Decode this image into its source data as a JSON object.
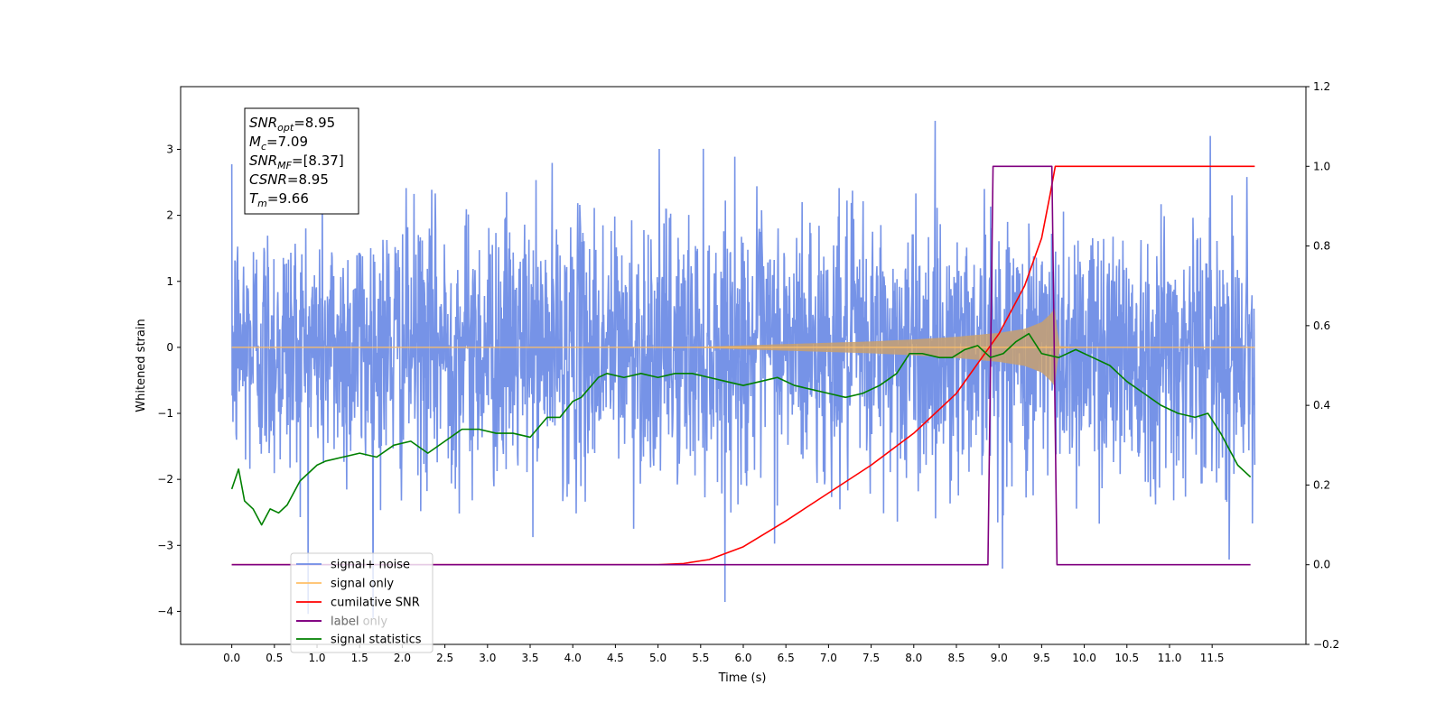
{
  "chart_data": {
    "type": "line",
    "xlabel": "Time (s)",
    "ylabel": "Whitened strain",
    "xlim": [
      -0.6,
      12.6
    ],
    "ylim_left": [
      -4.5,
      3.95
    ],
    "ylim_right": [
      -0.2,
      1.2
    ],
    "x_ticks": [
      "0.0",
      "0.5",
      "1.0",
      "1.5",
      "2.0",
      "2.5",
      "3.0",
      "3.5",
      "4.0",
      "4.5",
      "5.0",
      "5.5",
      "6.0",
      "6.5",
      "7.0",
      "7.5",
      "8.0",
      "8.5",
      "9.0",
      "9.5",
      "10.0",
      "10.5",
      "11.0",
      "11.5"
    ],
    "y_ticks_left": [
      "3",
      "2",
      "1",
      "0",
      "−1",
      "−2",
      "−3",
      "−4"
    ],
    "y_ticks_right": [
      "1.2",
      "1.0",
      "0.8",
      "0.6",
      "0.4",
      "0.2",
      "0.0",
      "−0.2"
    ],
    "annotation": {
      "lines": [
        {
          "sym": "SNR",
          "sub": "opt",
          "val": "=8.95"
        },
        {
          "sym": "M",
          "sub": "c",
          "val": "=7.09"
        },
        {
          "sym": "SNR",
          "sub": "MF",
          "val": "=[8.37]"
        },
        {
          "sym": "CSNR",
          "sub": "",
          "val": "=8.95"
        },
        {
          "sym": "T",
          "sub": "m",
          "val": "=9.66"
        }
      ]
    },
    "legend": {
      "placement": "lower-left",
      "entries": [
        {
          "label": "signal+ noise",
          "color": "#6f8de6"
        },
        {
          "label": "signal only",
          "color": "#ffbf66"
        },
        {
          "label": "cumilative SNR",
          "color": "#ff0000"
        },
        {
          "label": "label",
          "color": "#800080"
        },
        {
          "label": "label only",
          "color": "#800080"
        },
        {
          "label": "signal statistics",
          "color": "#008000"
        }
      ]
    },
    "series": [
      {
        "name": "signal+ noise",
        "axis": "left",
        "color": "#6f8de6",
        "x_range": [
          0.0,
          12.0
        ],
        "noise_sigma": 1.0,
        "min": -4.1,
        "max": 3.57
      },
      {
        "name": "signal only",
        "axis": "left",
        "color": "#ffbf66",
        "envelope_x": [
          0.0,
          5.0,
          5.5,
          6.0,
          6.5,
          7.0,
          7.5,
          8.0,
          8.5,
          9.0,
          9.3,
          9.5,
          9.6,
          9.66,
          9.7,
          10.0,
          12.0
        ],
        "envelope_y": [
          0.0,
          0.0,
          0.01,
          0.03,
          0.05,
          0.07,
          0.09,
          0.12,
          0.16,
          0.22,
          0.28,
          0.38,
          0.5,
          0.6,
          0.02,
          0.0,
          0.0
        ]
      },
      {
        "name": "cumilative SNR",
        "axis": "right",
        "color": "#ff0000",
        "x": [
          0.0,
          4.5,
          5.0,
          5.3,
          5.6,
          6.0,
          6.5,
          7.0,
          7.5,
          8.0,
          8.5,
          9.0,
          9.3,
          9.5,
          9.6,
          9.66,
          12.0
        ],
        "y": [
          0.0,
          0.0,
          0.0,
          0.003,
          0.013,
          0.045,
          0.11,
          0.18,
          0.25,
          0.33,
          0.43,
          0.58,
          0.7,
          0.82,
          0.93,
          1.0,
          1.0
        ]
      },
      {
        "name": "label",
        "axis": "right",
        "color": "#800080",
        "x": [
          0.0,
          8.87,
          8.93,
          9.62,
          9.68,
          11.95
        ],
        "y": [
          0.0,
          0.0,
          1.0,
          1.0,
          0.0,
          0.0
        ]
      },
      {
        "name": "signal statistics",
        "axis": "right",
        "color": "#008000",
        "x": [
          0.0,
          0.08,
          0.15,
          0.25,
          0.35,
          0.45,
          0.55,
          0.65,
          0.8,
          1.0,
          1.1,
          1.3,
          1.5,
          1.7,
          1.9,
          2.1,
          2.3,
          2.5,
          2.7,
          2.9,
          3.1,
          3.3,
          3.5,
          3.7,
          3.85,
          4.0,
          4.1,
          4.3,
          4.4,
          4.6,
          4.8,
          5.0,
          5.2,
          5.4,
          5.6,
          5.8,
          6.0,
          6.2,
          6.4,
          6.6,
          6.8,
          7.0,
          7.2,
          7.4,
          7.6,
          7.8,
          7.95,
          8.1,
          8.3,
          8.45,
          8.6,
          8.75,
          8.9,
          9.05,
          9.2,
          9.35,
          9.5,
          9.7,
          9.9,
          10.1,
          10.3,
          10.5,
          10.7,
          10.9,
          11.1,
          11.3,
          11.45,
          11.6,
          11.8,
          11.95
        ],
        "y": [
          0.19,
          0.24,
          0.16,
          0.14,
          0.1,
          0.14,
          0.13,
          0.15,
          0.21,
          0.25,
          0.26,
          0.27,
          0.28,
          0.27,
          0.3,
          0.31,
          0.28,
          0.31,
          0.34,
          0.34,
          0.33,
          0.33,
          0.32,
          0.37,
          0.37,
          0.41,
          0.42,
          0.47,
          0.48,
          0.47,
          0.48,
          0.47,
          0.48,
          0.48,
          0.47,
          0.46,
          0.45,
          0.46,
          0.47,
          0.45,
          0.44,
          0.43,
          0.42,
          0.43,
          0.45,
          0.48,
          0.53,
          0.53,
          0.52,
          0.52,
          0.54,
          0.55,
          0.52,
          0.53,
          0.56,
          0.58,
          0.53,
          0.52,
          0.54,
          0.52,
          0.5,
          0.46,
          0.43,
          0.4,
          0.38,
          0.37,
          0.38,
          0.33,
          0.25,
          0.22
        ]
      }
    ]
  }
}
